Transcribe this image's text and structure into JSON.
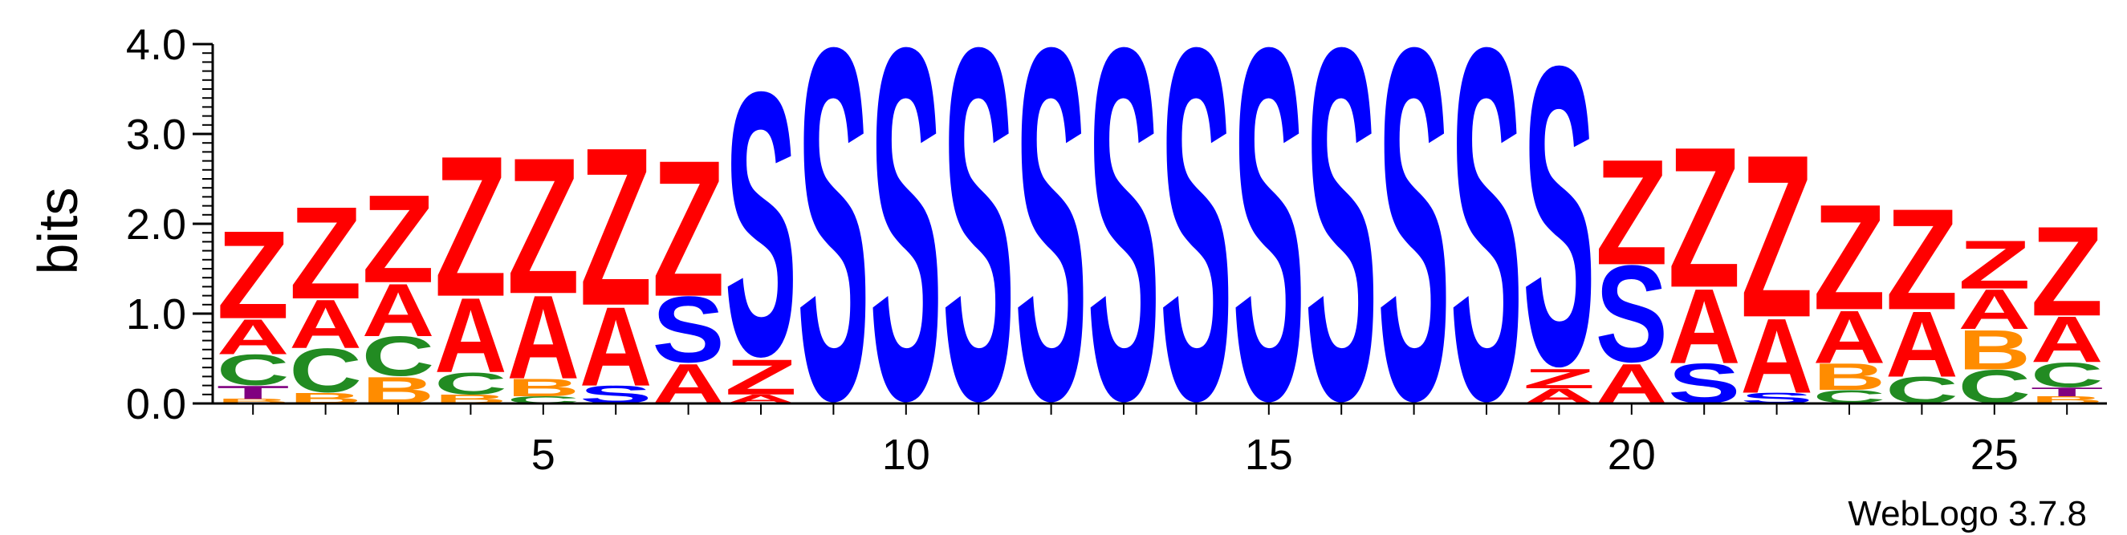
{
  "chart_data": {
    "type": "sequence-logo",
    "ylabel": "bits",
    "ylim": [
      0,
      4.0
    ],
    "y_ticks": [
      "0.0",
      "1.0",
      "2.0",
      "3.0",
      "4.0"
    ],
    "y_tick_values": [
      0,
      1,
      2,
      3,
      4
    ],
    "x_tick_labels": [
      "5",
      "10",
      "15",
      "20",
      "25"
    ],
    "x_tick_values": [
      5,
      10,
      15,
      20,
      25
    ],
    "positions": [
      1,
      2,
      3,
      4,
      5,
      6,
      7,
      8,
      9,
      10,
      11,
      12,
      13,
      14,
      15,
      16,
      17,
      18,
      19,
      20,
      21,
      22,
      23,
      24,
      25,
      26
    ],
    "footer": "WebLogo 3.7.8",
    "colors": {
      "S": "#0000ff",
      "Z": "#ff0000",
      "A": "#ff0000",
      "C": "#228b22",
      "B": "#ff8c00",
      "T": "#800080"
    },
    "stacks": [
      [
        {
          "l": "B",
          "v": 0.05
        },
        {
          "l": "T",
          "v": 0.15
        },
        {
          "l": "C",
          "v": 0.35
        },
        {
          "l": "A",
          "v": 0.4
        },
        {
          "l": "Z",
          "v": 1.0
        }
      ],
      [
        {
          "l": "B",
          "v": 0.12
        },
        {
          "l": "C",
          "v": 0.5
        },
        {
          "l": "A",
          "v": 0.55
        },
        {
          "l": "Z",
          "v": 1.05
        }
      ],
      [
        {
          "l": "B",
          "v": 0.3
        },
        {
          "l": "C",
          "v": 0.45
        },
        {
          "l": "A",
          "v": 0.6
        },
        {
          "l": "Z",
          "v": 1.0
        }
      ],
      [
        {
          "l": "B",
          "v": 0.1
        },
        {
          "l": "C",
          "v": 0.25
        },
        {
          "l": "A",
          "v": 0.85
        },
        {
          "l": "Z",
          "v": 1.6
        }
      ],
      [
        {
          "l": "C",
          "v": 0.08
        },
        {
          "l": "B",
          "v": 0.2
        },
        {
          "l": "A",
          "v": 0.95
        },
        {
          "l": "Z",
          "v": 1.55
        }
      ],
      [
        {
          "l": "S",
          "v": 0.2
        },
        {
          "l": "A",
          "v": 0.9
        },
        {
          "l": "Z",
          "v": 1.8
        }
      ],
      [
        {
          "l": "A",
          "v": 0.45
        },
        {
          "l": "S",
          "v": 0.75
        },
        {
          "l": "Z",
          "v": 1.55
        }
      ],
      [
        {
          "l": "A",
          "v": 0.1
        },
        {
          "l": "Z",
          "v": 0.4
        },
        {
          "l": "S",
          "v": 3.0
        }
      ],
      [
        {
          "l": "S",
          "v": 4.0
        }
      ],
      [
        {
          "l": "S",
          "v": 4.0
        }
      ],
      [
        {
          "l": "S",
          "v": 4.0
        }
      ],
      [
        {
          "l": "S",
          "v": 4.0
        }
      ],
      [
        {
          "l": "S",
          "v": 4.0
        }
      ],
      [
        {
          "l": "S",
          "v": 4.0
        }
      ],
      [
        {
          "l": "S",
          "v": 4.0
        }
      ],
      [
        {
          "l": "S",
          "v": 4.0
        }
      ],
      [
        {
          "l": "S",
          "v": 4.0
        }
      ],
      [
        {
          "l": "S",
          "v": 4.0
        }
      ],
      [
        {
          "l": "A",
          "v": 0.17
        },
        {
          "l": "Z",
          "v": 0.22
        },
        {
          "l": "S",
          "v": 3.4
        }
      ],
      [
        {
          "l": "A",
          "v": 0.45
        },
        {
          "l": "S",
          "v": 1.1
        },
        {
          "l": "Z",
          "v": 1.2
        }
      ],
      [
        {
          "l": "S",
          "v": 0.45
        },
        {
          "l": "A",
          "v": 0.85
        },
        {
          "l": "Z",
          "v": 1.6
        }
      ],
      [
        {
          "l": "S",
          "v": 0.12
        },
        {
          "l": "A",
          "v": 0.85
        },
        {
          "l": "Z",
          "v": 1.85
        }
      ],
      [
        {
          "l": "C",
          "v": 0.15
        },
        {
          "l": "B",
          "v": 0.3
        },
        {
          "l": "A",
          "v": 0.6
        },
        {
          "l": "Z",
          "v": 1.2
        }
      ],
      [
        {
          "l": "C",
          "v": 0.3
        },
        {
          "l": "A",
          "v": 0.75
        },
        {
          "l": "Z",
          "v": 1.15
        }
      ],
      [
        {
          "l": "C",
          "v": 0.38
        },
        {
          "l": "B",
          "v": 0.45
        },
        {
          "l": "A",
          "v": 0.45
        },
        {
          "l": "Z",
          "v": 0.55
        }
      ],
      [
        {
          "l": "B",
          "v": 0.08
        },
        {
          "l": "T",
          "v": 0.1
        },
        {
          "l": "C",
          "v": 0.28
        },
        {
          "l": "A",
          "v": 0.52
        },
        {
          "l": "Z",
          "v": 1.02
        }
      ]
    ]
  }
}
